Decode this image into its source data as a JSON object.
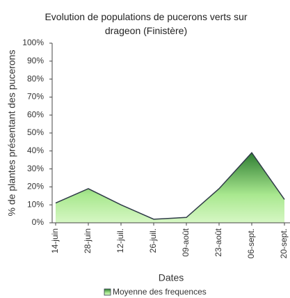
{
  "chart_data": {
    "type": "area",
    "title": "Evolution de populations de pucerons verts sur drageon (Finistère)",
    "xlabel": "Dates",
    "ylabel": "% de plantes présentant des pucerons",
    "categories": [
      "14-juin",
      "28-juin",
      "12-juil.",
      "26-juil.",
      "09-août",
      "23-août",
      "06-sept.",
      "20-sept."
    ],
    "series": [
      {
        "name": "Moyenne des frequences",
        "color": "#2e7d32",
        "values": [
          11,
          19,
          10,
          2,
          3,
          19,
          39,
          13
        ]
      }
    ],
    "ylim": [
      0,
      100
    ],
    "yticks": [
      {
        "value": 0,
        "label": "0%"
      },
      {
        "value": 10,
        "label": "10%"
      },
      {
        "value": 20,
        "label": "20%"
      },
      {
        "value": 30,
        "label": "30%"
      },
      {
        "value": 40,
        "label": "40%"
      },
      {
        "value": 50,
        "label": "50%"
      },
      {
        "value": 60,
        "label": "60%"
      },
      {
        "value": 70,
        "label": "70%"
      },
      {
        "value": 80,
        "label": "80%"
      },
      {
        "value": 90,
        "label": "90%"
      },
      {
        "value": 100,
        "label": "100%"
      }
    ],
    "legend": "bottom"
  }
}
